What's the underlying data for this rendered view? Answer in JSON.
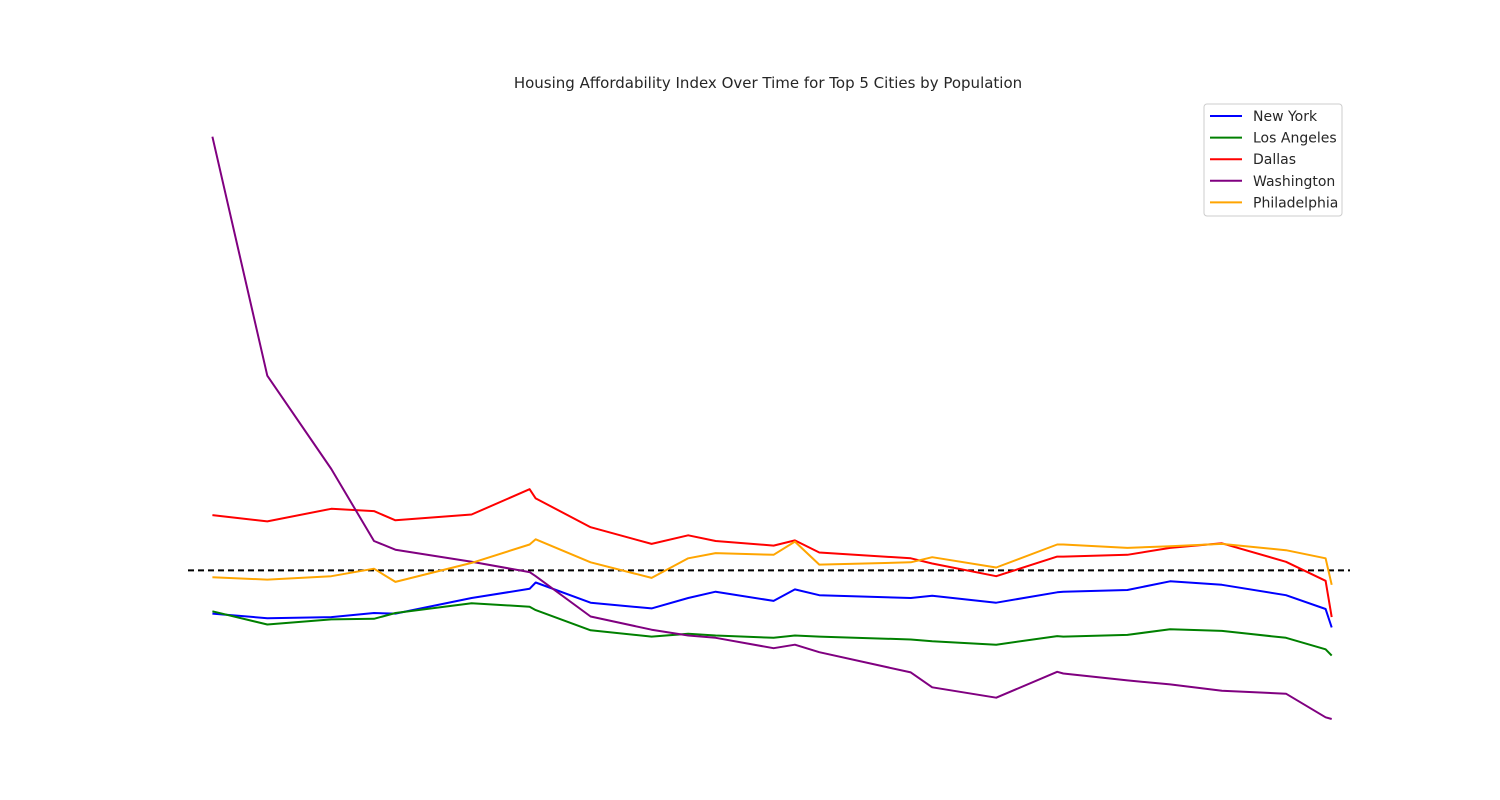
{
  "chart_data": {
    "type": "line",
    "title": "Housing Affordability Index Over Time for Top 5 Cities by Population",
    "xlabel": "",
    "ylabel": "",
    "grid": false,
    "axes_visible": false,
    "legend_position": "top-right",
    "x_range": [
      -0.8,
      37.3
    ],
    "ylim": [
      0,
      100
    ],
    "reference_line": {
      "y": 22.5,
      "style": "dashed",
      "color": "#000000"
    },
    "x": [
      0,
      1.8,
      3.9,
      5.3,
      6,
      8.5,
      10.4,
      10.6,
      12.4,
      14.4,
      15.6,
      16.5,
      18.4,
      19.1,
      19.9,
      22.9,
      23.6,
      25.7,
      27.7,
      27.9,
      30,
      31.4,
      33.1,
      35.2,
      36.5,
      36.7
    ],
    "series": [
      {
        "name": "New York",
        "color": "#0000ff",
        "values": [
          15.0,
          14.2,
          14.4,
          15.1,
          15.0,
          17.7,
          19.3,
          20.4,
          16.9,
          15.9,
          17.7,
          18.8,
          17.2,
          19.2,
          18.2,
          17.7,
          18.1,
          16.9,
          18.7,
          18.8,
          19.1,
          20.6,
          20.0,
          18.2,
          15.8,
          12.6
        ]
      },
      {
        "name": "Los Angeles",
        "color": "#008000",
        "values": [
          15.4,
          13.1,
          14.0,
          14.1,
          15.1,
          16.8,
          16.2,
          15.6,
          12.1,
          11.0,
          11.5,
          11.2,
          10.8,
          11.2,
          11.0,
          10.5,
          10.2,
          9.6,
          11.1,
          11.0,
          11.3,
          12.3,
          12.0,
          10.8,
          8.8,
          7.7
        ]
      },
      {
        "name": "Dallas",
        "color": "#ff0000",
        "values": [
          32.1,
          31.0,
          33.2,
          32.8,
          31.2,
          32.2,
          36.6,
          35.0,
          30.0,
          27.1,
          28.6,
          27.6,
          26.8,
          27.7,
          25.6,
          24.6,
          23.7,
          21.5,
          24.9,
          24.9,
          25.2,
          26.4,
          27.2,
          24.0,
          20.7,
          14.4
        ]
      },
      {
        "name": "Washington",
        "color": "#800080",
        "values": [
          97.8,
          56.3,
          40.1,
          27.6,
          26.1,
          24.0,
          22.2,
          21.5,
          14.5,
          12.2,
          11.2,
          10.8,
          9.0,
          9.6,
          8.3,
          4.8,
          2.2,
          0.4,
          4.9,
          4.6,
          3.4,
          2.7,
          1.6,
          1.1,
          -3.0,
          -3.3
        ]
      },
      {
        "name": "Philadelphia",
        "color": "#ffa500",
        "values": [
          21.3,
          20.9,
          21.5,
          22.8,
          20.5,
          23.8,
          27.0,
          27.9,
          23.9,
          21.2,
          24.6,
          25.5,
          25.2,
          27.5,
          23.5,
          23.9,
          24.8,
          23.0,
          27.0,
          27.0,
          26.4,
          26.7,
          27.1,
          26.0,
          24.6,
          20.0
        ]
      }
    ]
  }
}
